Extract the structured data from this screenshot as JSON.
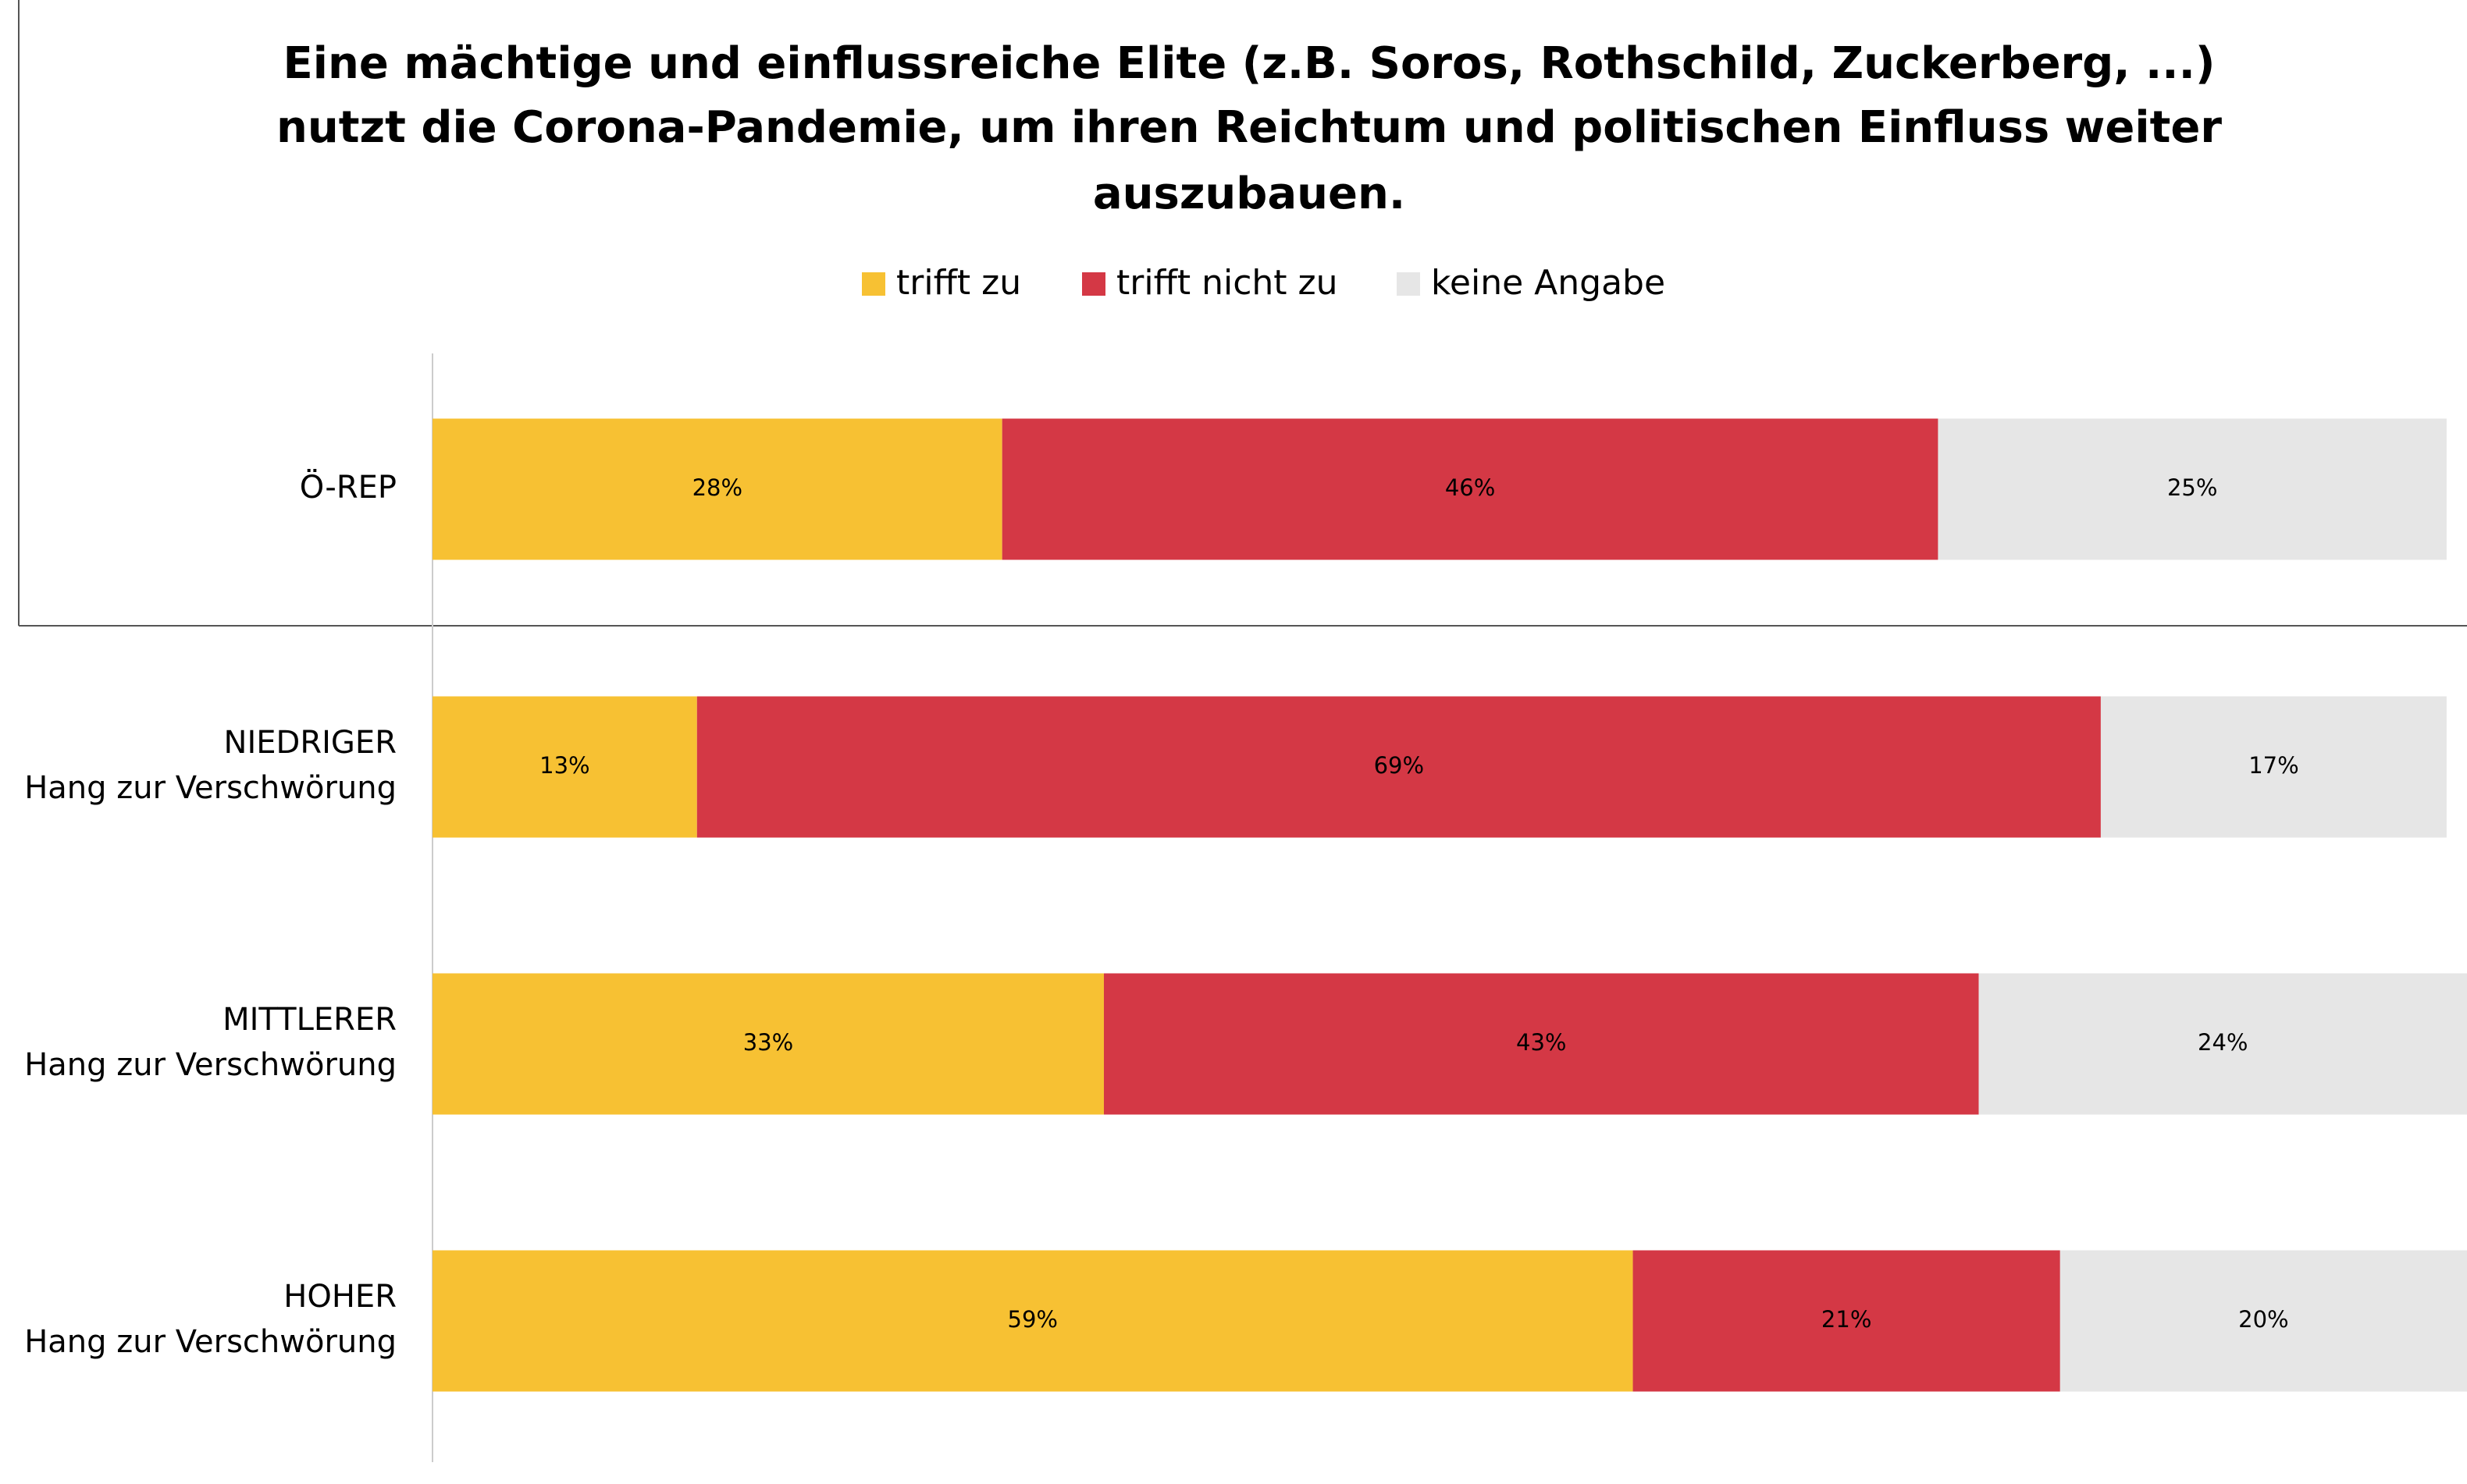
{
  "chart_data": {
    "type": "stacked_bar_horizontal",
    "title": [
      "Eine mächtige und einflussreiche Elite (z.B. Soros, Rothschild, Zuckerberg, ...)",
      "nutzt die Corona-Pandemie, um ihren Reichtum und politischen Einfluss weiter",
      "auszubauen."
    ],
    "categories": [
      [
        "Ö-REP"
      ],
      [
        "NIEDRIGER",
        "Hang zur Verschwörung"
      ],
      [
        "MITTLERER",
        "Hang zur Verschwörung"
      ],
      [
        "HOHER",
        "Hang zur Verschwörung"
      ]
    ],
    "series": [
      {
        "name": "trifft zu",
        "color": "#f7c133",
        "values": [
          28,
          13,
          33,
          59
        ],
        "value_labels": [
          "28%",
          "13%",
          "33%",
          "59%"
        ]
      },
      {
        "name": "trifft nicht zu",
        "color": "#d43845",
        "values": [
          46,
          69,
          43,
          21
        ],
        "value_labels": [
          "46%",
          "69%",
          "43%",
          "21%"
        ]
      },
      {
        "name": "keine Angabe",
        "color": "#e6e6e6",
        "values": [
          25,
          17,
          24,
          20
        ],
        "value_labels": [
          "25%",
          "17%",
          "24%",
          "20%"
        ]
      }
    ],
    "xlim": [
      0,
      100
    ],
    "legend": "top"
  }
}
